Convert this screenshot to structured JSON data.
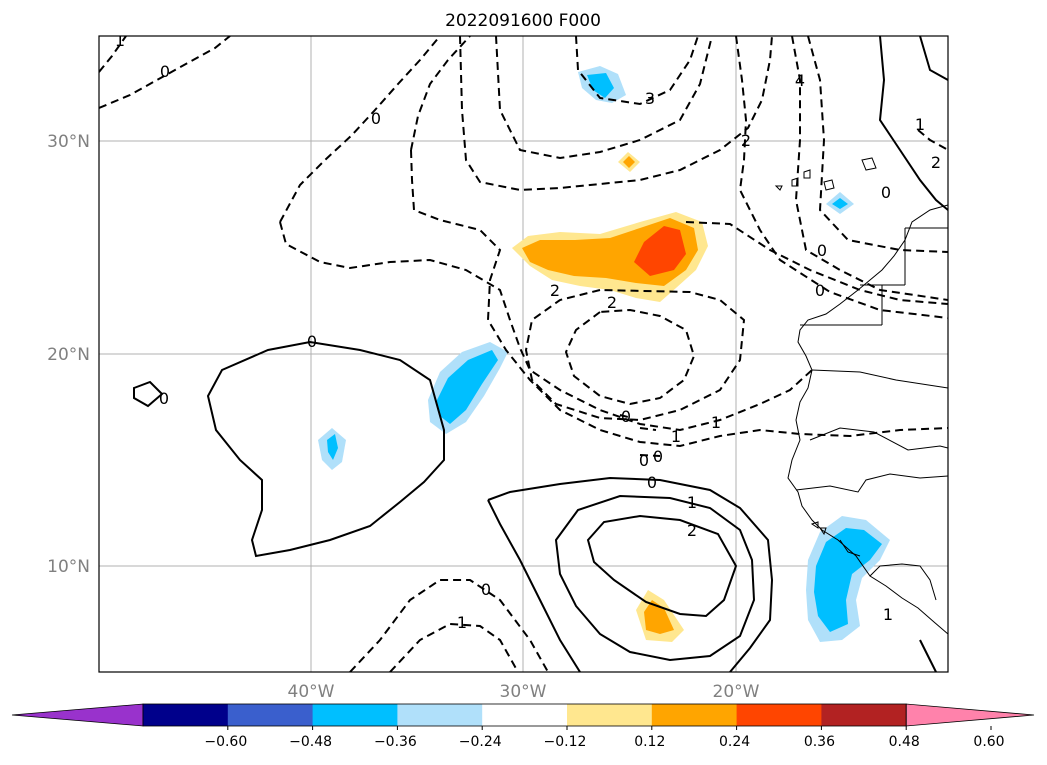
{
  "chart_data": {
    "type": "map-contour",
    "title": "2022091600 F000",
    "x_ticks": [
      "40°W",
      "30°W",
      "20°W"
    ],
    "y_ticks": [
      "30°N",
      "20°N",
      "10°N"
    ],
    "grid": true,
    "contour_labels": [
      "0",
      "0",
      "0",
      "0",
      "0",
      "0",
      "0",
      "0",
      "1",
      "1",
      "1",
      "2",
      "2",
      "2",
      "2",
      "3",
      "4",
      "1",
      "1",
      "0",
      "1",
      "2",
      "0",
      "0",
      "1",
      "0"
    ],
    "colorbar": {
      "extend": "both",
      "ticks": [
        "−0.60",
        "−0.48",
        "−0.36",
        "−0.24",
        "−0.12",
        "0.12",
        "0.24",
        "0.36",
        "0.48",
        "0.60"
      ],
      "colors": [
        "#9932cc",
        "#00008b",
        "#3a5fcd",
        "#00bfff",
        "#b0e0fa",
        "#ffffff",
        "#ffe78f",
        "#ffa500",
        "#ff4500",
        "#b22222",
        "#ff82ab"
      ]
    }
  }
}
